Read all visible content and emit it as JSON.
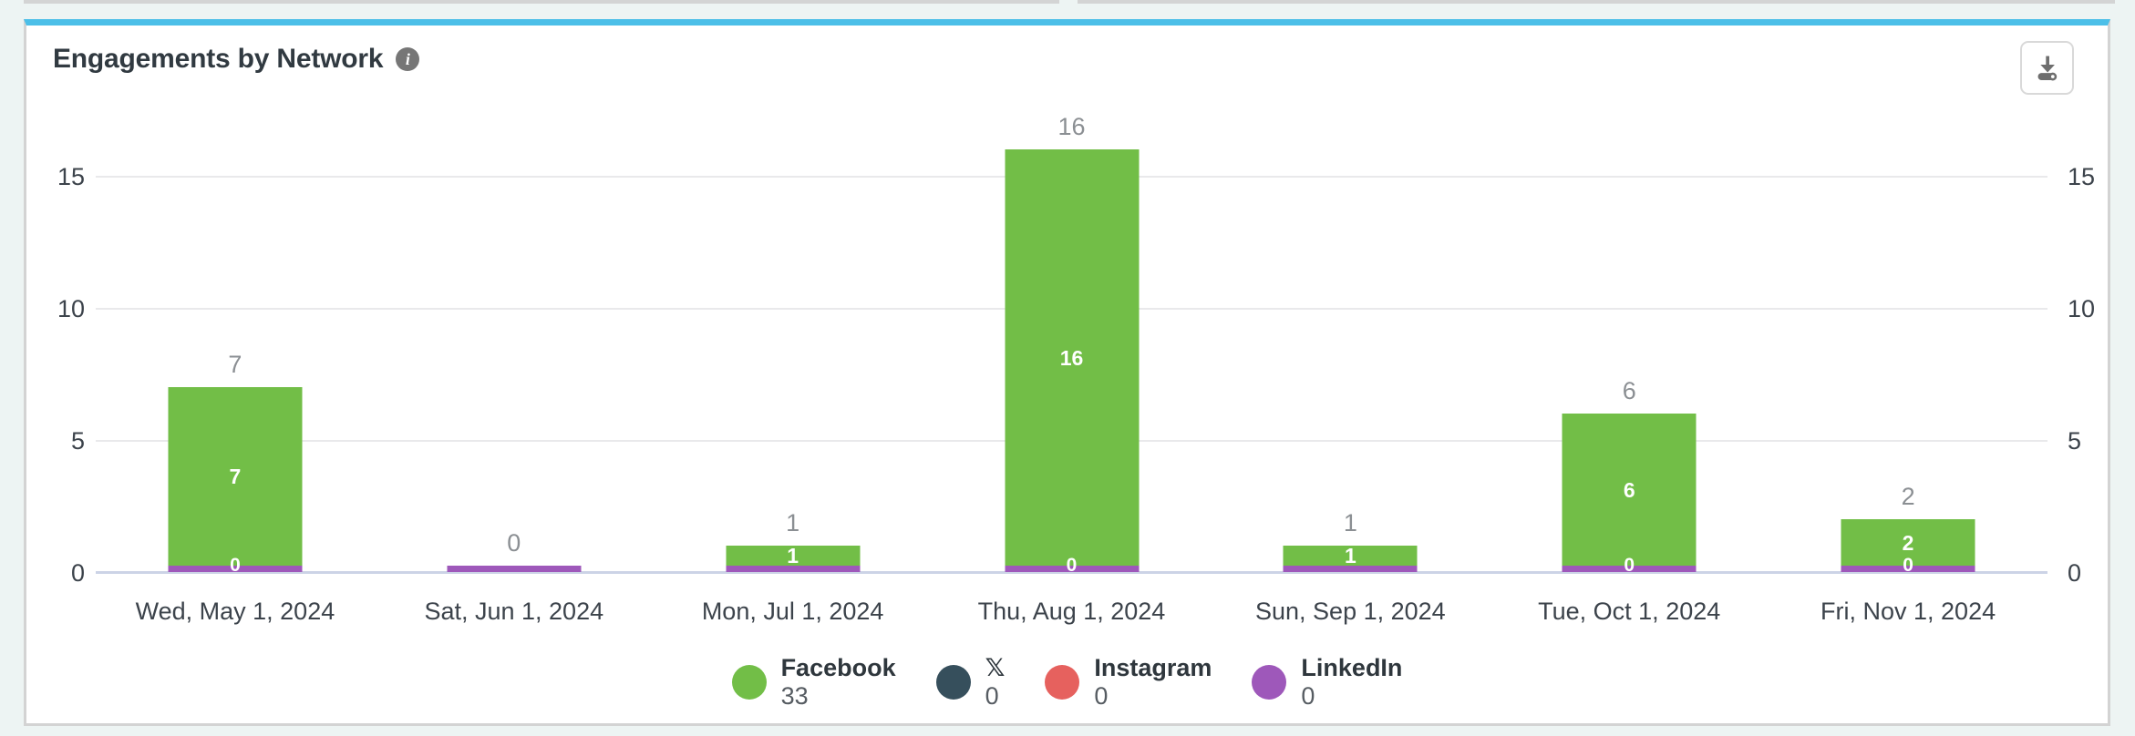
{
  "header": {
    "title": "Engagements by Network"
  },
  "icons": {
    "info": "info-circle",
    "info_glyph": "i",
    "download": "download-tray"
  },
  "axis": {
    "left_ticks": [
      "0",
      "5",
      "10",
      "15"
    ],
    "right_ticks": [
      "0",
      "5",
      "10",
      "15"
    ]
  },
  "chart_data": {
    "type": "bar",
    "stacked": true,
    "title": "Engagements by Network",
    "categories": [
      "Wed, May 1, 2024",
      "Sat, Jun 1, 2024",
      "Mon, Jul 1, 2024",
      "Thu, Aug 1, 2024",
      "Sun, Sep 1, 2024",
      "Tue, Oct 1, 2024",
      "Fri, Nov 1, 2024"
    ],
    "series": [
      {
        "name": "Facebook",
        "color": "#72be47",
        "values": [
          7,
          0,
          1,
          16,
          1,
          6,
          2
        ]
      },
      {
        "name": "X",
        "color": "#364f5c",
        "values": [
          0,
          0,
          0,
          0,
          0,
          0,
          0
        ]
      },
      {
        "name": "Instagram",
        "color": "#e6615e",
        "values": [
          0,
          0,
          0,
          0,
          0,
          0,
          0
        ]
      },
      {
        "name": "LinkedIn",
        "color": "#9e58ba",
        "values": [
          0,
          0,
          0,
          0,
          0,
          0,
          0
        ]
      }
    ],
    "totals": [
      7,
      0,
      1,
      16,
      1,
      6,
      2
    ],
    "total_labels": [
      "7",
      "0",
      "1",
      "16",
      "1",
      "6",
      "2"
    ],
    "facebook_bar_labels": [
      "7",
      "",
      "1",
      "16",
      "1",
      "6",
      "2"
    ],
    "linkedin_zero_labels": [
      "0",
      "",
      "",
      "0",
      "",
      "0",
      "0"
    ],
    "xlabel": "",
    "ylabel": "",
    "ylim": [
      0,
      16.6
    ],
    "y_ticks": [
      0,
      5,
      10,
      15
    ],
    "grid": true,
    "legend_position": "bottom"
  },
  "legend": {
    "items": [
      {
        "label": "Facebook",
        "value": "33",
        "color": "#72be47"
      },
      {
        "label": "𝕏",
        "value": "0",
        "color": "#364f5c"
      },
      {
        "label": "Instagram",
        "value": "0",
        "color": "#e6615e"
      },
      {
        "label": "LinkedIn",
        "value": "0",
        "color": "#9e58ba"
      }
    ]
  },
  "colors": {
    "card_accent_top": "#4cbfe8",
    "card_border": "#d3d3d3",
    "page_background": "#edf4f3",
    "facebook_green": "#72be47",
    "linkedin_purple": "#9e58ba",
    "instagram_red": "#e6615e",
    "x_slate": "#364f5c",
    "gridline": "#e9e9eb",
    "axis_line": "#ccd3e6"
  }
}
